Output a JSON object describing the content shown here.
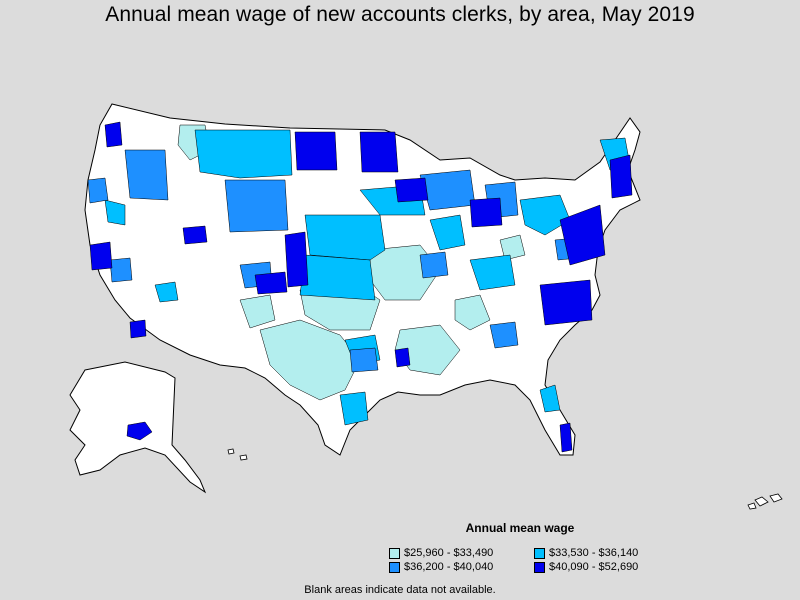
{
  "title": "Annual mean wage of new accounts clerks, by area, May 2019",
  "legend": {
    "title": "Annual mean wage",
    "items": [
      {
        "label": "$25,960 - $33,490",
        "color": "#b3eeee"
      },
      {
        "label": "$33,530 - $36,140",
        "color": "#00bfff"
      },
      {
        "label": "$36,200 - $40,040",
        "color": "#1e90ff"
      },
      {
        "label": "$40,090 - $52,690",
        "color": "#0000ee"
      }
    ]
  },
  "footnote": "Blank areas indicate data not available.",
  "colors": {
    "background": "#dcdcdc",
    "no_data": "#ffffff",
    "border": "#000000"
  }
}
